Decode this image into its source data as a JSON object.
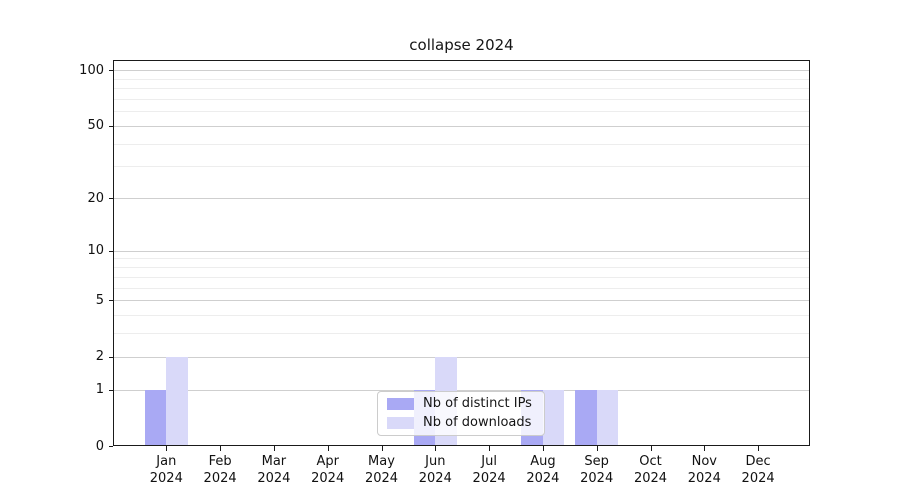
{
  "title": "collapse 2024",
  "legend": {
    "position": "lower center",
    "items": [
      {
        "label": "Nb of distinct IPs",
        "color": "#a9a9f4"
      },
      {
        "label": "Nb of downloads",
        "color": "#d9d9f9"
      }
    ]
  },
  "chart_data": {
    "type": "bar",
    "title": "collapse 2024",
    "categories": [
      "Jan 2024",
      "Feb 2024",
      "Mar 2024",
      "Apr 2024",
      "May 2024",
      "Jun 2024",
      "Jul 2024",
      "Aug 2024",
      "Sep 2024",
      "Oct 2024",
      "Nov 2024",
      "Dec 2024"
    ],
    "series": [
      {
        "name": "Nb of distinct IPs",
        "color": "#a9a9f4",
        "values": [
          1,
          0,
          0,
          0,
          0,
          1,
          0,
          1,
          1,
          0,
          0,
          0
        ]
      },
      {
        "name": "Nb of downloads",
        "color": "#d9d9f9",
        "values": [
          2,
          0,
          0,
          0,
          0,
          2,
          0,
          1,
          1,
          0,
          0,
          0
        ]
      }
    ],
    "xlabel": "",
    "ylabel": "",
    "y_axis": {
      "scale": "log1p",
      "range": [
        0,
        100
      ],
      "major_ticks": [
        0,
        1,
        2,
        5,
        10,
        20,
        50,
        100
      ],
      "minor_gridlines": [
        3,
        4,
        6,
        7,
        8,
        9,
        30,
        40,
        60,
        70,
        80,
        90
      ]
    },
    "grid": "horizontal",
    "legend_position": "lower center"
  },
  "colors": {
    "bar_ips": "#a9a9f4",
    "bar_downloads": "#d9d9f9",
    "grid_major": "#cfcfcf",
    "grid_minor": "#ededed",
    "spine": "#1a1a1a",
    "text": "#111111",
    "background": "#ffffff"
  }
}
